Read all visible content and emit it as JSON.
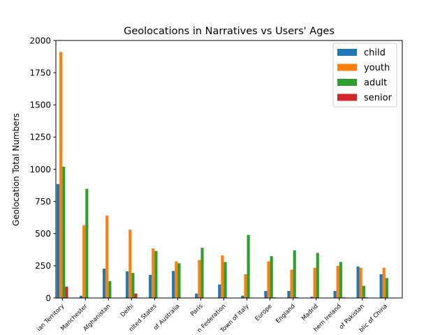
{
  "chart_data": {
    "type": "bar",
    "title": "Geolocations in Narratives vs Users' Ages",
    "xlabel": "",
    "ylabel": "Geolocation Total Numbers",
    "ylim": [
      0,
      2000
    ],
    "yticks": [
      0,
      250,
      500,
      750,
      1000,
      1250,
      1500,
      1750,
      2000
    ],
    "grid": false,
    "legend_position": "top-right",
    "categories": [
      "ian Territory",
      "Manchester",
      "Afghanistan",
      "Delhi",
      "nited States",
      "of Australia",
      "Paris",
      "n Federation",
      "Town of Italy",
      "Europe",
      "England",
      "Madrid",
      "hern Ireland",
      "of Pakistan",
      "blic of China"
    ],
    "series": [
      {
        "name": "child",
        "color": "#1f77b4",
        "values": [
          885,
          18,
          228,
          207,
          180,
          210,
          35,
          105,
          18,
          55,
          55,
          10,
          55,
          245,
          185
        ]
      },
      {
        "name": "youth",
        "color": "#ff7f0e",
        "values": [
          1910,
          565,
          640,
          530,
          385,
          285,
          295,
          330,
          185,
          285,
          220,
          235,
          250,
          235,
          235
        ]
      },
      {
        "name": "adult",
        "color": "#2ca02c",
        "values": [
          1020,
          848,
          130,
          195,
          365,
          270,
          390,
          280,
          490,
          325,
          370,
          350,
          280,
          95,
          155
        ]
      },
      {
        "name": "senior",
        "color": "#d62728",
        "values": [
          88,
          0,
          0,
          35,
          0,
          0,
          0,
          0,
          0,
          5,
          5,
          0,
          5,
          5,
          0
        ]
      }
    ]
  }
}
